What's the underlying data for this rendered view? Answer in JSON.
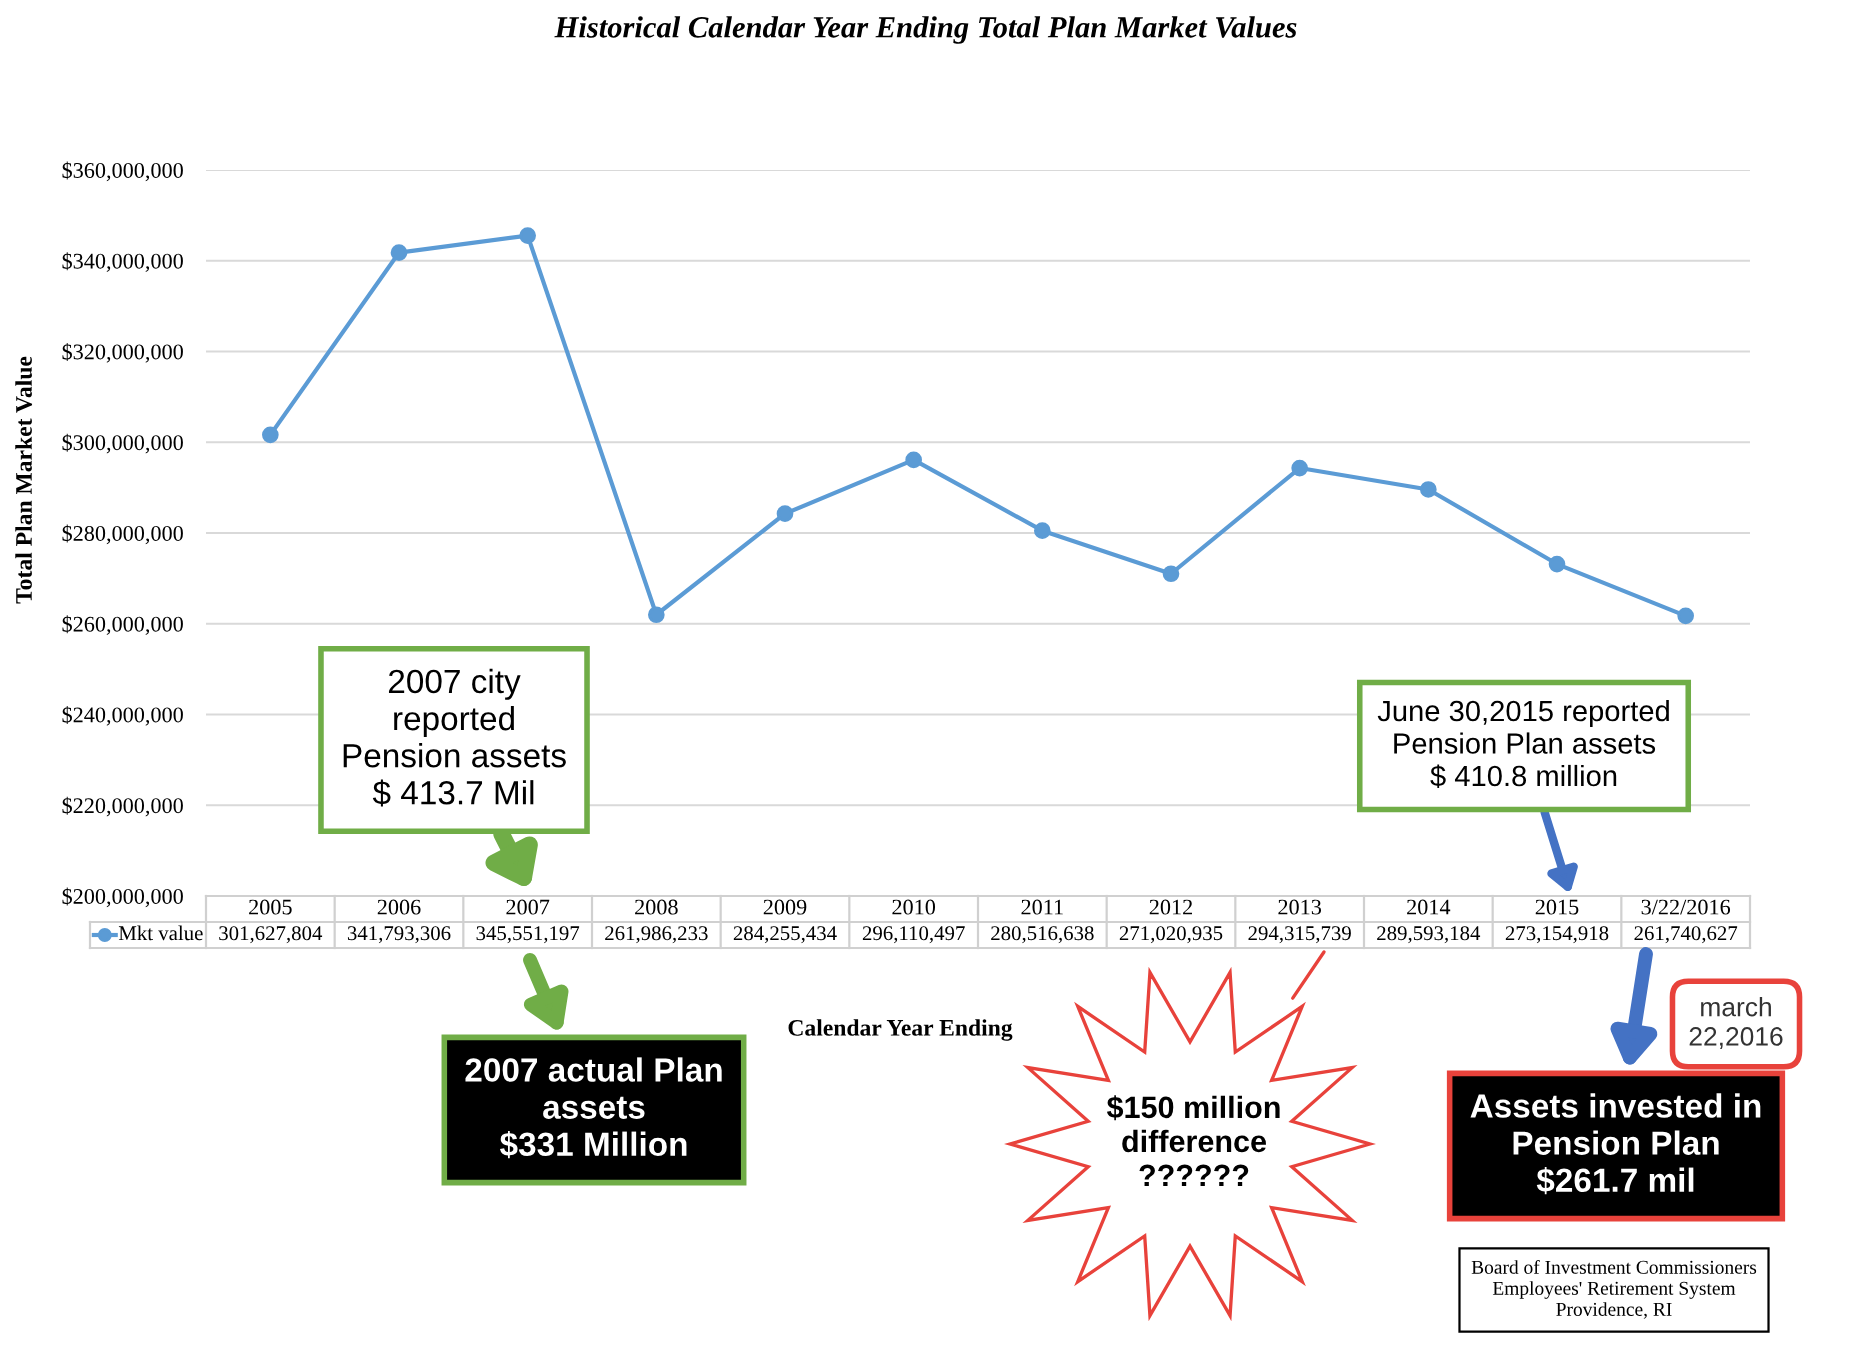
{
  "chart_data": {
    "type": "line",
    "title": "Historical Calendar Year Ending Total Plan Market Values",
    "xlabel": "Calendar Year Ending",
    "ylabel": "Total Plan Market Value",
    "categories": [
      "2005",
      "2006",
      "2007",
      "2008",
      "2009",
      "2010",
      "2011",
      "2012",
      "2013",
      "2014",
      "2015",
      "3/22/2016"
    ],
    "series": [
      {
        "name": "Mkt value",
        "color": "#5b9bd5",
        "values": [
          301627804,
          341793306,
          345551197,
          261986233,
          284255434,
          296110497,
          280516638,
          271020935,
          294315739,
          289593184,
          273154918,
          261740627
        ],
        "value_labels": [
          "301,627,804",
          "341,793,306",
          "345,551,197",
          "261,986,233",
          "284,255,434",
          "296,110,497",
          "280,516,638",
          "271,020,935",
          "294,315,739",
          "289,593,184",
          "273,154,918",
          "261,740,627"
        ]
      }
    ],
    "ylim": [
      200000000,
      360000000
    ],
    "yticks": [
      {
        "value": 200000000,
        "label": "$200,000,000"
      },
      {
        "value": 220000000,
        "label": "$220,000,000"
      },
      {
        "value": 240000000,
        "label": "$240,000,000"
      },
      {
        "value": 260000000,
        "label": "$260,000,000"
      },
      {
        "value": 280000000,
        "label": "$280,000,000"
      },
      {
        "value": 300000000,
        "label": "$300,000,000"
      },
      {
        "value": 320000000,
        "label": "$320,000,000"
      },
      {
        "value": 340000000,
        "label": "$340,000,000"
      },
      {
        "value": 360000000,
        "label": "$360,000,000"
      }
    ],
    "grid": "y",
    "marker": "circle",
    "line_style": "solid",
    "legend": "bottom",
    "annotations": [
      "2007 city\nreported\nPension assets\n$ 413.7 Mil",
      "2007 actual Plan\nassets\n$331 Million",
      "$150 million\ndifference\n??????",
      "June 30,2015 reported\nPension Plan assets\n$ 410.8 million",
      "march\n22,2016",
      "Assets invested in\nPension Plan\n$261.7 mil",
      "Board of Investment Commissioners\nEmployees' Retirement System\nProvidence, RI"
    ]
  }
}
